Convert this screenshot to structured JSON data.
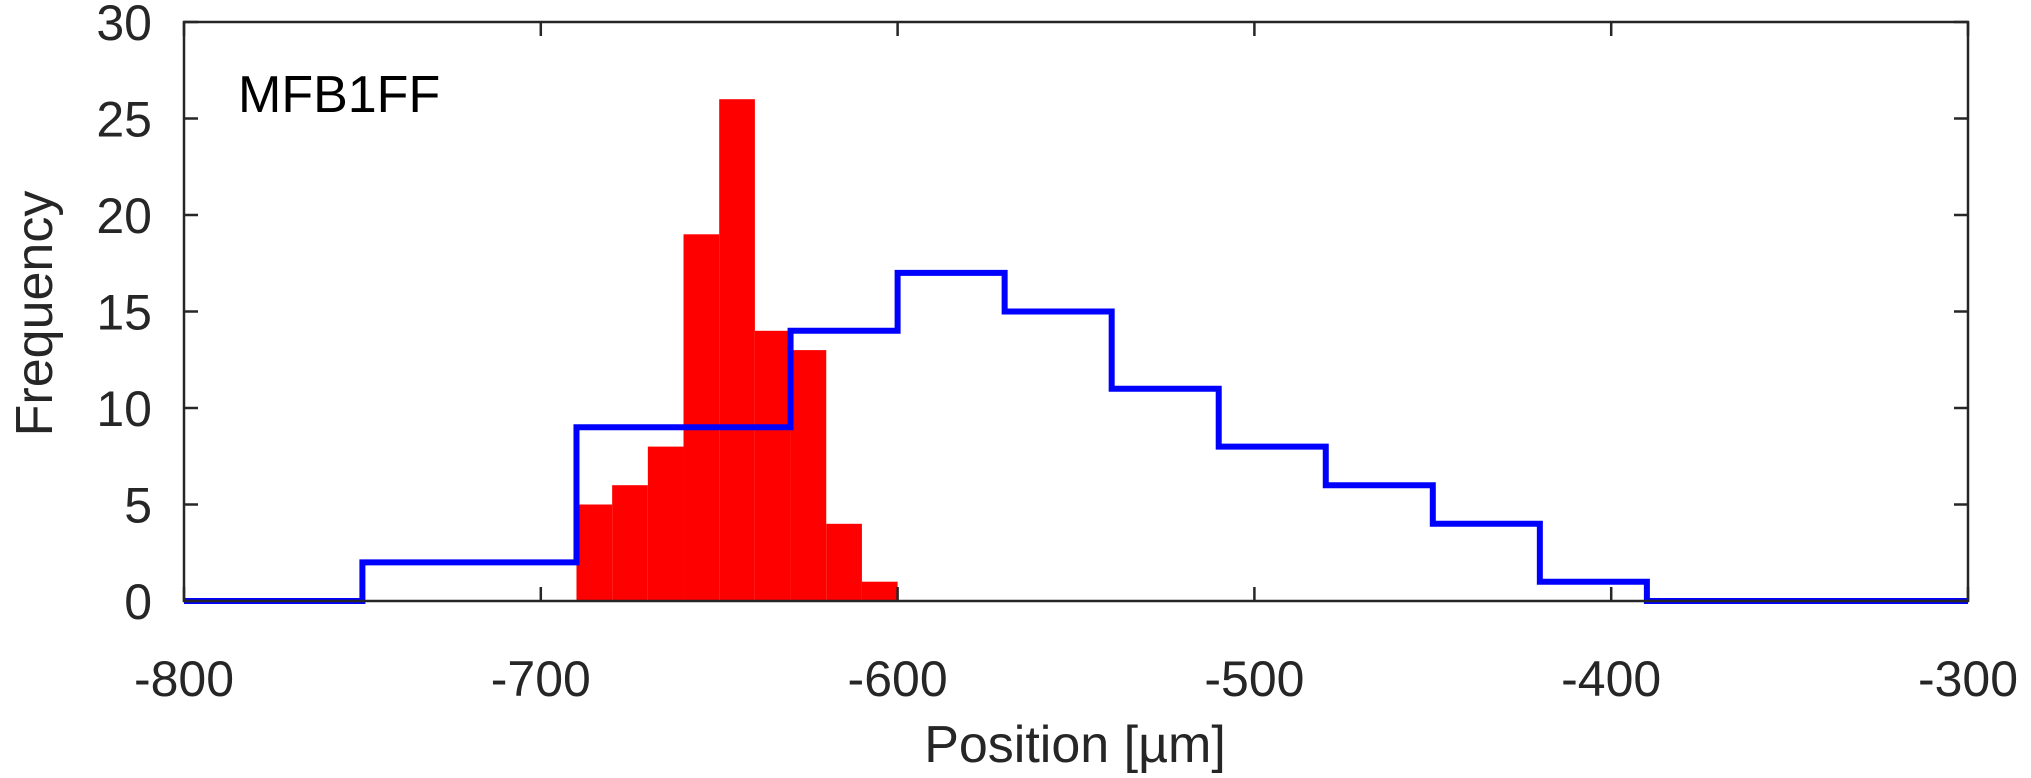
{
  "chart_data": {
    "type": "histogram",
    "title": "",
    "xlabel": "Position [µm]",
    "ylabel": "Frequency",
    "annotation": "MFB1FF",
    "xlim": [
      -800,
      -300
    ],
    "ylim": [
      0,
      30
    ],
    "xticks": [
      -800,
      -700,
      -600,
      -500,
      -400,
      -300
    ],
    "yticks": [
      0,
      5,
      10,
      15,
      20,
      25,
      30
    ],
    "grid": false,
    "series": [
      {
        "style": "filled-bars",
        "color": "#ff0000",
        "bin_width": 10,
        "bins": [
          {
            "x0": -690,
            "x1": -680,
            "count": 5
          },
          {
            "x0": -680,
            "x1": -670,
            "count": 6
          },
          {
            "x0": -670,
            "x1": -660,
            "count": 8
          },
          {
            "x0": -660,
            "x1": -650,
            "count": 19
          },
          {
            "x0": -650,
            "x1": -640,
            "count": 26
          },
          {
            "x0": -640,
            "x1": -630,
            "count": 14
          },
          {
            "x0": -630,
            "x1": -620,
            "count": 13
          },
          {
            "x0": -620,
            "x1": -610,
            "count": 4
          },
          {
            "x0": -610,
            "x1": -600,
            "count": 1
          }
        ]
      },
      {
        "style": "step-outline",
        "color": "#0000ff",
        "bin_width": 30,
        "bins": [
          {
            "x0": -800,
            "x1": -750,
            "count": 0
          },
          {
            "x0": -750,
            "x1": -690,
            "count": 2
          },
          {
            "x0": -690,
            "x1": -630,
            "count": 9
          },
          {
            "x0": -630,
            "x1": -600,
            "count": 14
          },
          {
            "x0": -600,
            "x1": -570,
            "count": 17
          },
          {
            "x0": -570,
            "x1": -540,
            "count": 15
          },
          {
            "x0": -540,
            "x1": -510,
            "count": 11
          },
          {
            "x0": -510,
            "x1": -480,
            "count": 8
          },
          {
            "x0": -480,
            "x1": -450,
            "count": 6
          },
          {
            "x0": -450,
            "x1": -420,
            "count": 4
          },
          {
            "x0": -420,
            "x1": -390,
            "count": 1
          },
          {
            "x0": -390,
            "x1": -300,
            "count": 0
          }
        ]
      }
    ]
  }
}
